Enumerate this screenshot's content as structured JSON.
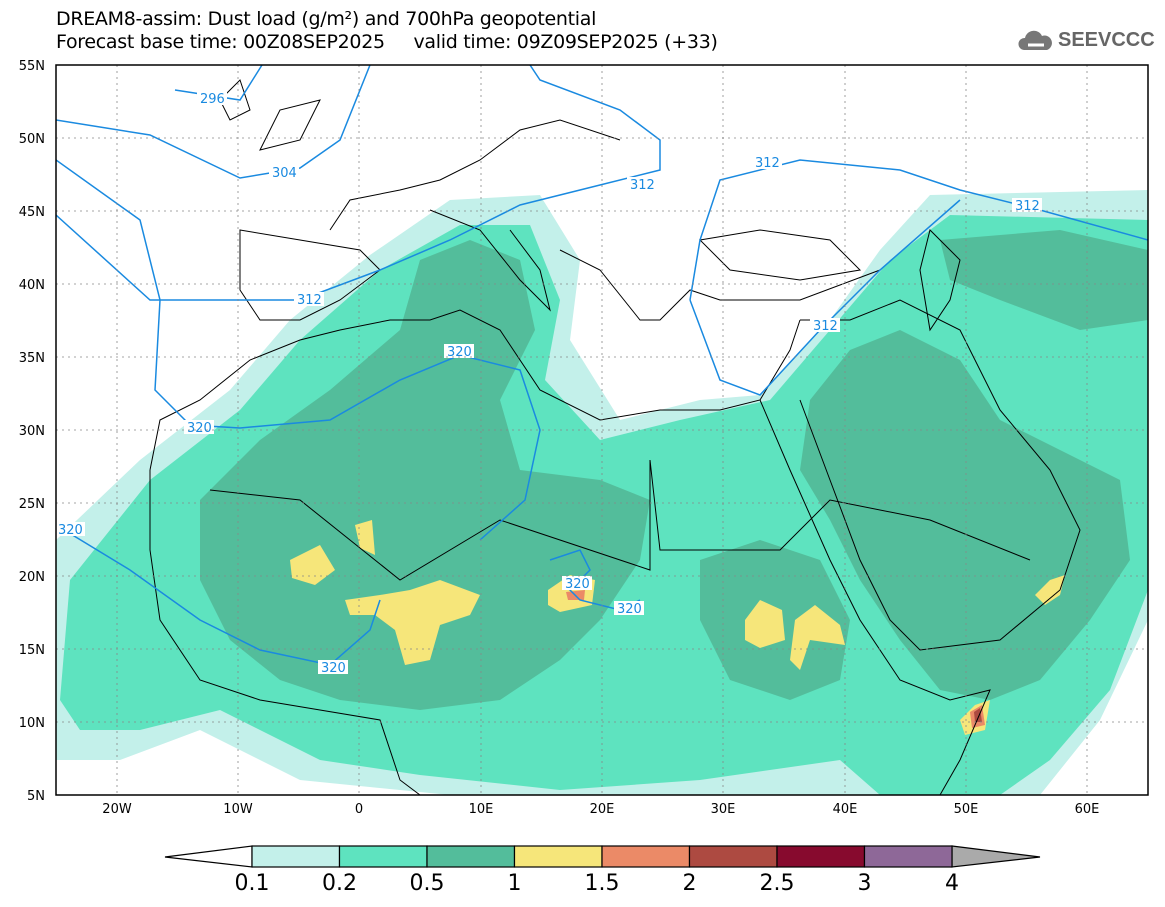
{
  "header": {
    "title": "DREAM8-assim: Dust load (g/m²) and 700hPa geopotential",
    "subtitle": "Forecast base time: 00Z08SEP2025     valid time: 09Z09SEP2025 (+33)",
    "logo_text": "SEEVCCC",
    "logo_icon": "cloud-icon"
  },
  "axes": {
    "lat_labels": [
      "55N",
      "50N",
      "45N",
      "40N",
      "35N",
      "30N",
      "25N",
      "20N",
      "15N",
      "10N",
      "5N"
    ],
    "lon_labels": [
      "20W",
      "10W",
      "0",
      "10E",
      "20E",
      "30E",
      "40E",
      "50E",
      "60E"
    ]
  },
  "contour_labels": [
    {
      "value": "296"
    },
    {
      "value": "304"
    },
    {
      "value": "312"
    },
    {
      "value": "312"
    },
    {
      "value": "312"
    },
    {
      "value": "312"
    },
    {
      "value": "312"
    },
    {
      "value": "320"
    },
    {
      "value": "320"
    },
    {
      "value": "320"
    },
    {
      "value": "320"
    },
    {
      "value": "320"
    },
    {
      "value": "320"
    }
  ],
  "colorbar": {
    "labels": [
      "0.1",
      "0.2",
      "0.5",
      "1",
      "1.5",
      "2",
      "2.5",
      "3",
      "4"
    ],
    "colors": [
      "#c3f0ea",
      "#5ee3bf",
      "#53bd9b",
      "#f6e67a",
      "#eb8a67",
      "#ad4a41",
      "#870a2e",
      "#8e6898"
    ],
    "over_color": "#aaaaaa",
    "contour_color": "#1a8ae0"
  }
}
